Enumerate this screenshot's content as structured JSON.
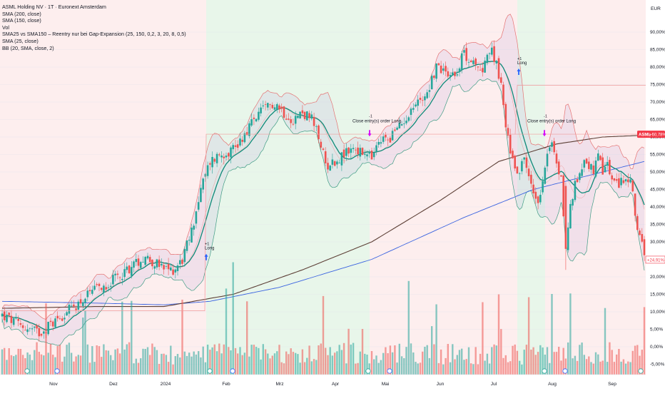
{
  "chart_data": {
    "type": "candlestick",
    "currency": "EUR",
    "legend": [
      "ASML Holding NV · 1T · Euronext Amsterdam",
      "SMA (200, close)",
      "SMA (150, close)",
      "Vol",
      "SMA25 vs SMA150 – Reentry nur bei Gap-Expansion (25, 150, 0,2, 3, 20, 8, 0,5)",
      "SMA (25, close)",
      "BB (20, SMA, close, 2)"
    ],
    "y_axis_ticks": [
      "90,00%",
      "85,00%",
      "80,00%",
      "75,00%",
      "70,00%",
      "65,00%",
      "60,00%",
      "55,00%",
      "50,00%",
      "45,00%",
      "40,00%",
      "35,00%",
      "30,00%",
      "25,00%",
      "20,00%",
      "15,00%",
      "10,00%",
      "5,00%",
      "0,00%",
      "-5,00%"
    ],
    "y_range": [
      -8,
      97
    ],
    "x_axis_labels": [
      "Nov",
      "Dez",
      "2024",
      "Feb",
      "Mrz",
      "Apr",
      "Mai",
      "Jun",
      "Jul",
      "Aug",
      "Sep"
    ],
    "price_badges": [
      {
        "label": "ASML",
        "value": "+60,78%",
        "color": "#f23645"
      },
      {
        "value": "+24,91%",
        "color": "#f23645"
      }
    ],
    "signals": [
      {
        "label": "Long",
        "sub": "+1"
      },
      {
        "label": "Close entry(s) order Long",
        "sub": "-1"
      },
      {
        "label": "Long",
        "sub": "+1"
      },
      {
        "label": "Close entry(s) order Long",
        "sub": "-1"
      }
    ],
    "colors": {
      "up": "#26a69a",
      "down": "#ef5350",
      "sma25": "#0e8a78",
      "sma150": "#3a63e0",
      "sma200": "#5d4037",
      "bb": "#e57373",
      "bb_lower": "#3f9c84",
      "bg_long": "#e8f6ea",
      "bg_short": "#fdeeee",
      "accent": "#f23645"
    }
  }
}
